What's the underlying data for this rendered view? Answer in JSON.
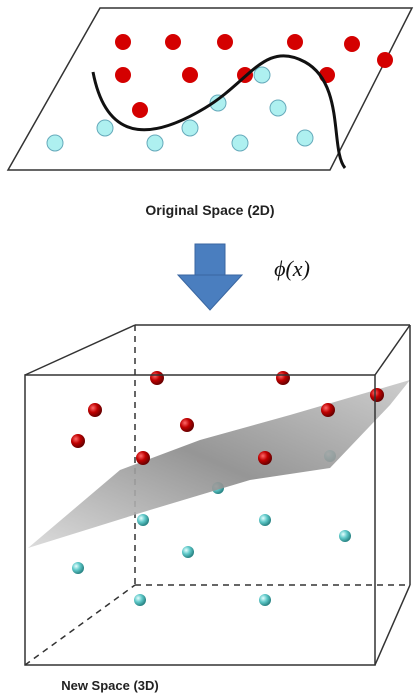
{
  "top_label": "Original Space (2D)",
  "mapping_label": "ϕ(x)",
  "bottom_label": "New Space (3D)"
}
